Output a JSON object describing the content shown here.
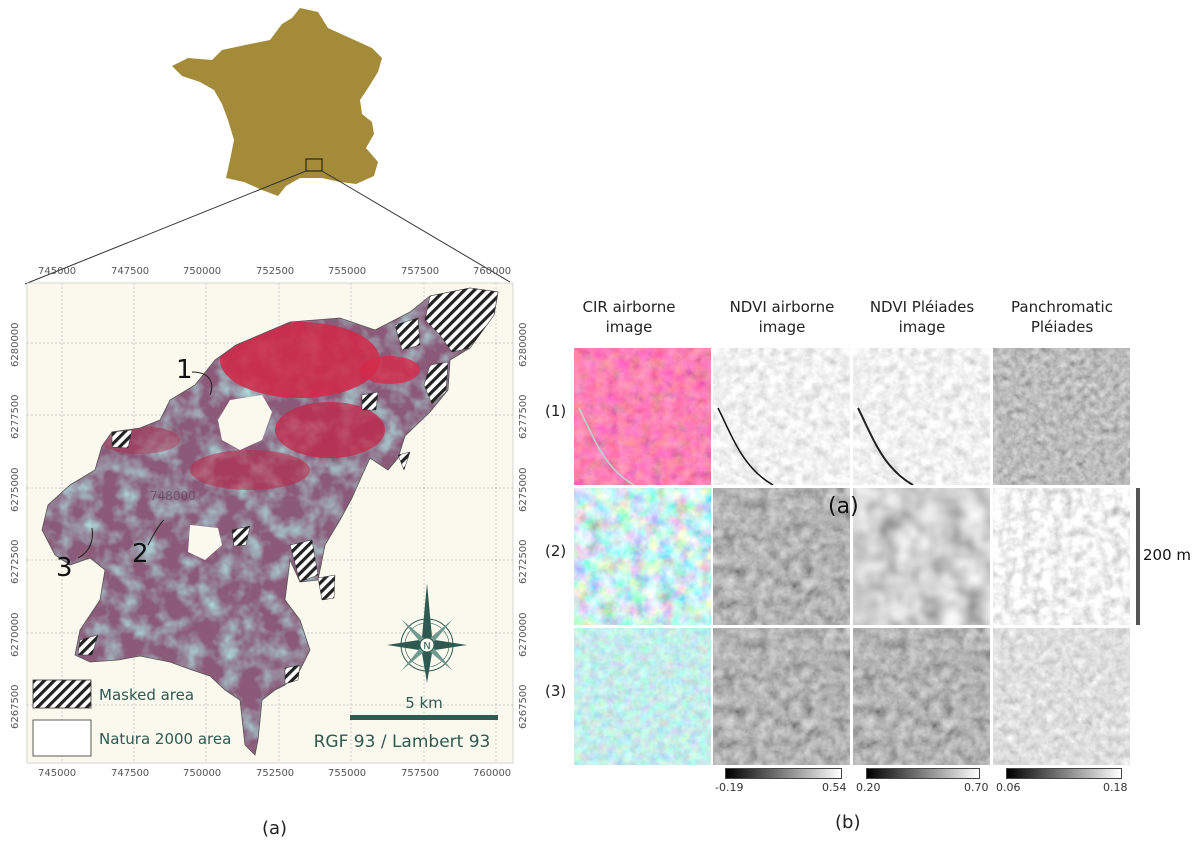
{
  "figure": {
    "panel_a_label": "(a)",
    "panel_b_label": "(b)",
    "colors": {
      "france": "#a38b3a",
      "map_background": "#fbf9ee",
      "heath_red": "#d12848",
      "cyan": "#6fcfc8",
      "compass": "#2e5a52"
    }
  },
  "map": {
    "x_ticks": [
      "745000",
      "747500",
      "750000",
      "752500",
      "755000",
      "757500",
      "760000"
    ],
    "y_ticks": [
      "6280000",
      "6277500",
      "6275000",
      "6272500",
      "6270000",
      "6267500"
    ],
    "site_labels": [
      "1",
      "2",
      "3"
    ],
    "faint_label": "748000",
    "compass_letter": "N",
    "scale_bar_label": "5 km",
    "crs_label": "RGF 93 / Lambert 93",
    "legend": {
      "masked": "Masked area",
      "natura": "Natura 2000 area"
    }
  },
  "grid": {
    "columns": [
      [
        "CIR airborne",
        "image"
      ],
      [
        "NDVI airborne",
        "image"
      ],
      [
        "NDVI Pléiades",
        "image"
      ],
      [
        "Panchromatic",
        "Pléiades"
      ]
    ],
    "rows": [
      "(1)",
      "(2)",
      "(3)"
    ],
    "overlay_label": "(a)",
    "scale_label": "200 m",
    "colorbars": [
      {
        "min": "-0.19",
        "max": "0.54"
      },
      {
        "min": "0.20",
        "max": "0.70"
      },
      {
        "min": "0.06",
        "max": "0.18"
      }
    ]
  }
}
